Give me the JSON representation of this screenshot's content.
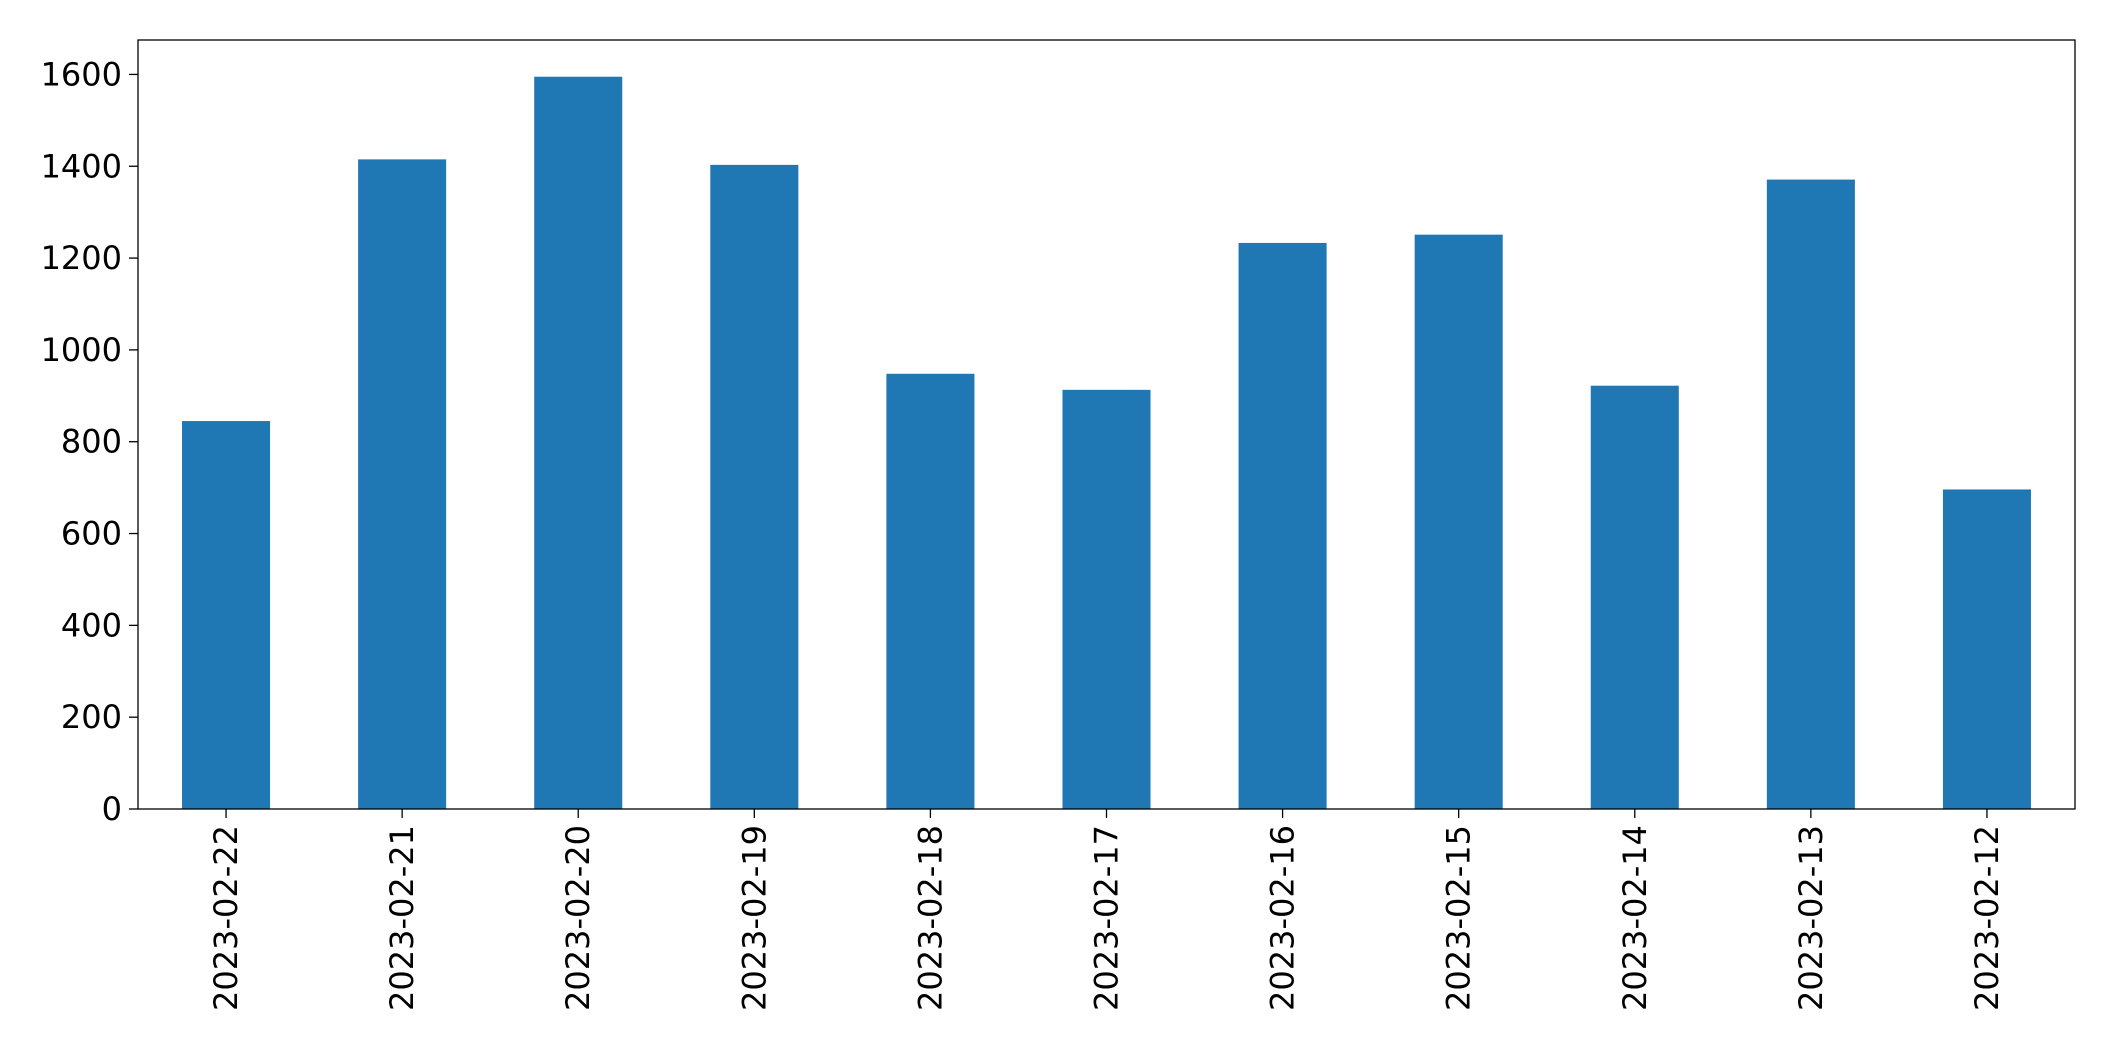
{
  "chart_data": {
    "type": "bar",
    "categories": [
      "2023-02-22",
      "2023-02-21",
      "2023-02-20",
      "2023-02-19",
      "2023-02-18",
      "2023-02-17",
      "2023-02-16",
      "2023-02-15",
      "2023-02-14",
      "2023-02-13",
      "2023-02-12"
    ],
    "values": [
      845,
      1415,
      1595,
      1403,
      948,
      913,
      1233,
      1251,
      922,
      1371,
      696
    ],
    "color": "#1f77b4",
    "ylim": [
      0,
      1675
    ],
    "yticks": [
      0,
      200,
      400,
      600,
      800,
      1000,
      1200,
      1400,
      1600
    ],
    "grid": false
  }
}
